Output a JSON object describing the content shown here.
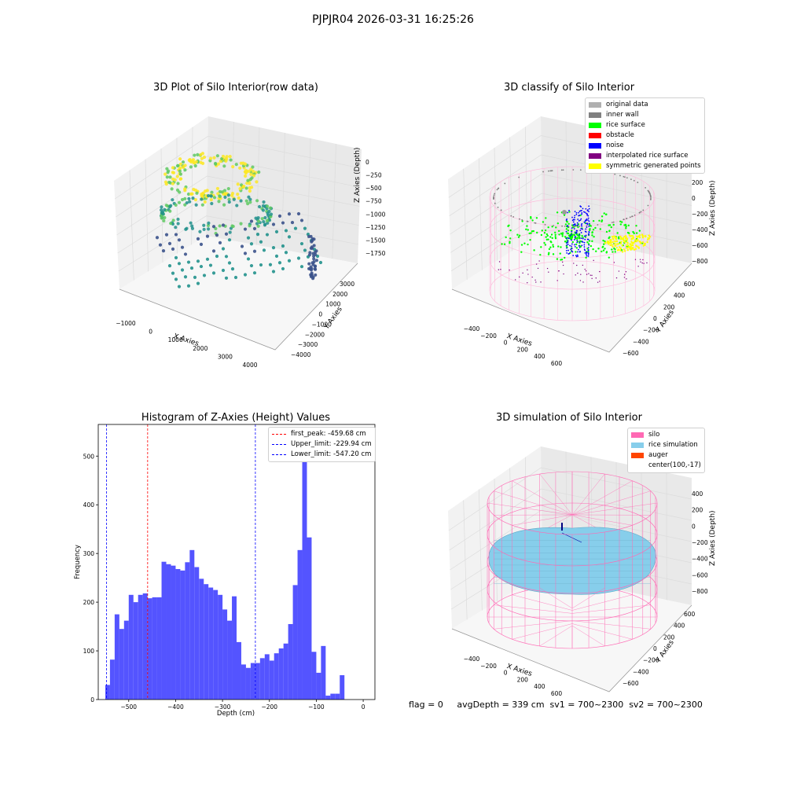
{
  "figure": {
    "suptitle": "PJPJR04 2026-03-31 16:25:26",
    "status_line": "flag = 0     avgDepth = 339 cm  sv1 = 700~2300  sv2 = 700~2300"
  },
  "colors": {
    "histogram": "#4b4bff",
    "first_peak": "#ff0000",
    "limits": "#0000ff",
    "silo_wire": "#ff69b4",
    "rice_simulation": "#87ceeb",
    "original_data": "#b0b0b0",
    "inner_wall": "#808080",
    "rice_surface": "#00ff00",
    "obstacle": "#ff0000",
    "noise": "#0000ff",
    "interpolated_rice_surface": "#800080",
    "symmetric_generated_points": "#ffff00",
    "auger": "#ff4500"
  },
  "chart_data": [
    {
      "type": "scatter",
      "title": "3D Plot of Silo Interior(row data)",
      "xlabel": "X Axies",
      "ylabel": "Y Axies",
      "zlabel": "Z Axies (Depth)",
      "x_ticks": [
        "−1000",
        "0",
        "1000",
        "2000",
        "3000",
        "4000"
      ],
      "y_ticks": [
        "3000",
        "2000",
        "1000",
        "0",
        "−1000",
        "−2000",
        "−3000",
        "−4000"
      ],
      "z_ticks": [
        "0",
        "−250",
        "−500",
        "−750",
        "−1000",
        "−1250",
        "−1500",
        "−1750"
      ],
      "colormap": "viridis"
    },
    {
      "type": "scatter",
      "title": "3D classify of Silo Interior",
      "xlabel": "X Axies",
      "ylabel": "Y Axies",
      "zlabel": "Z Axies (Depth)",
      "x_ticks": [
        "−400",
        "−200",
        "0",
        "200",
        "400",
        "600"
      ],
      "y_ticks": [
        "600",
        "400",
        "200",
        "0",
        "−200",
        "−400",
        "−600"
      ],
      "z_ticks": [
        "200",
        "0",
        "−200",
        "−400",
        "−600",
        "−800"
      ],
      "legend": [
        {
          "label": "original data",
          "color": "#b0b0b0"
        },
        {
          "label": "inner wall",
          "color": "#808080"
        },
        {
          "label": "rice surface",
          "color": "#00ff00"
        },
        {
          "label": "obstacle",
          "color": "#ff0000"
        },
        {
          "label": "noise",
          "color": "#0000ff"
        },
        {
          "label": "interpolated rice surface",
          "color": "#800080"
        },
        {
          "label": "symmetric generated points",
          "color": "#ffff00"
        }
      ]
    },
    {
      "type": "bar",
      "title": "Histogram of Z-Axies (Height) Values",
      "xlabel": "Depth (cm)",
      "ylabel": "Frequency",
      "xlim": [
        -565,
        25
      ],
      "ylim": [
        0,
        565
      ],
      "x_ticks": [
        -500,
        -400,
        -300,
        -200,
        -100,
        0
      ],
      "y_ticks": [
        0,
        100,
        200,
        300,
        400,
        500
      ],
      "bin_start": -550,
      "bin_width": 10,
      "values": [
        30,
        82,
        175,
        145,
        162,
        215,
        200,
        215,
        218,
        208,
        210,
        210,
        283,
        278,
        275,
        268,
        265,
        282,
        307,
        272,
        248,
        237,
        230,
        225,
        215,
        185,
        162,
        212,
        118,
        72,
        65,
        75,
        75,
        85,
        93,
        80,
        95,
        105,
        115,
        155,
        235,
        307,
        540,
        333,
        98,
        55,
        110,
        8,
        12,
        12,
        50
      ],
      "lines": [
        {
          "label": "first_peak: -459.68 cm",
          "x": -459.68,
          "color": "#ff0000"
        },
        {
          "label": "Upper_limit: -229.94 cm",
          "x": -229.94,
          "color": "#0000ff"
        },
        {
          "label": "Lower_limit: -547.20 cm",
          "x": -547.2,
          "color": "#0000ff"
        }
      ]
    },
    {
      "type": "scatter",
      "title": "3D simulation of Silo Interior",
      "xlabel": "X Axies",
      "ylabel": "Y Axies",
      "zlabel": "Z Axies (Depth)",
      "x_ticks": [
        "−400",
        "−200",
        "0",
        "200",
        "400",
        "600"
      ],
      "y_ticks": [
        "600",
        "400",
        "200",
        "0",
        "−200",
        "−400",
        "−600"
      ],
      "z_ticks": [
        "400",
        "200",
        "0",
        "−200",
        "−400",
        "−600",
        "−800"
      ],
      "legend": [
        {
          "label": "silo",
          "color": "#ff69b4"
        },
        {
          "label": "rice simulation",
          "color": "#87ceeb"
        },
        {
          "label": "auger",
          "color": "#ff4500"
        },
        {
          "label": "center(100,-17)",
          "color": ""
        }
      ]
    }
  ]
}
